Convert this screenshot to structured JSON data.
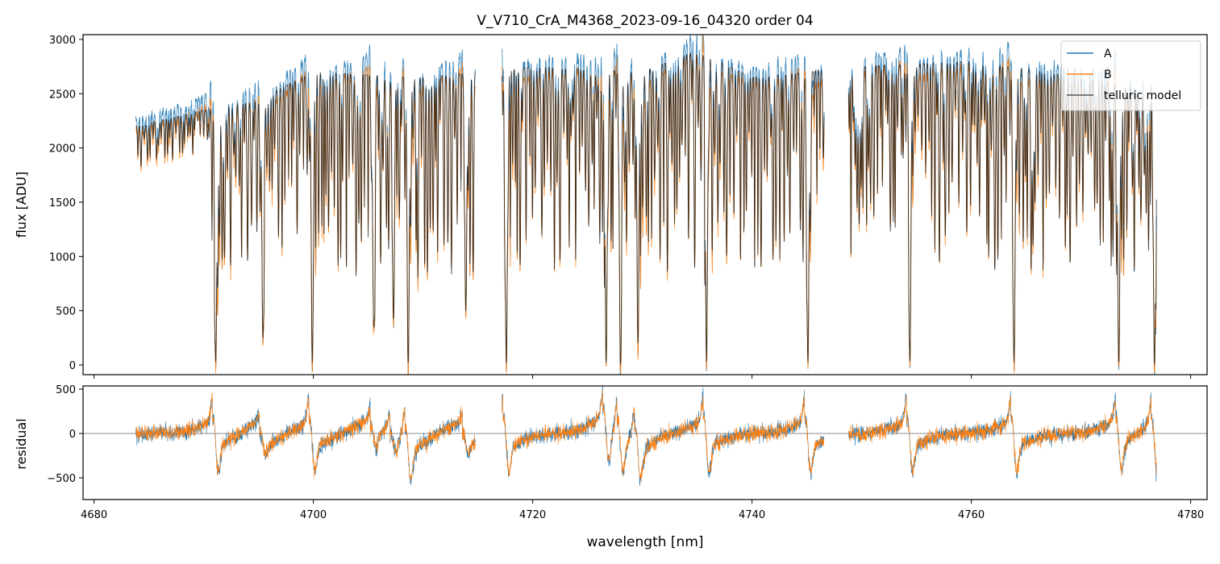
{
  "chart_data": [
    {
      "type": "line",
      "title": "V_V710_CrA_M4368_2023-09-16_04320  order 04",
      "xlabel": "",
      "ylabel": "flux [ADU]",
      "xlim": [
        4679.0,
        4781.5
      ],
      "ylim": [
        -89,
        3044
      ],
      "xticks": [
        4680,
        4700,
        4720,
        4740,
        4760,
        4780
      ],
      "yticks": [
        0,
        500,
        1000,
        1500,
        2000,
        2500,
        3000
      ],
      "ytick_labels": [
        "0",
        "500",
        "1000",
        "1500",
        "2000",
        "2500",
        "3000"
      ],
      "legend": {
        "position": "top-right",
        "entries": [
          "A",
          "B",
          "telluric model"
        ]
      },
      "series": [
        {
          "name": "A",
          "color": "#1f77b4",
          "scale": 1.03
        },
        {
          "name": "B",
          "color": "#ff7f0e",
          "scale": 0.98
        },
        {
          "name": "telluric model",
          "color": "#000000",
          "scale": 1.0
        }
      ],
      "data_segments_nm": [
        [
          4683.8,
          4714.8
        ],
        [
          4717.2,
          4746.6
        ],
        [
          4748.8,
          4776.9
        ]
      ],
      "continuum": {
        "x": [
          4683.8,
          4690,
          4695,
          4700,
          4710,
          4720,
          4730,
          4735,
          4740,
          4750,
          4760,
          4770,
          4776.9
        ],
        "y": [
          2200,
          2350,
          2450,
          2700,
          2650,
          2750,
          2700,
          2900,
          2650,
          2750,
          2800,
          2650,
          2500
        ]
      },
      "strong_lines": {
        "center_nm": [
          4691.1,
          4695.4,
          4699.9,
          4705.5,
          4707.3,
          4708.65,
          4713.9,
          4717.6,
          4726.7,
          4728.0,
          4729.6,
          4735.85,
          4745.1,
          4754.4,
          4763.9,
          4773.45,
          4776.7
        ],
        "min_flux": [
          30,
          250,
          20,
          380,
          480,
          20,
          500,
          20,
          30,
          10,
          240,
          20,
          30,
          40,
          30,
          40,
          0
        ]
      }
    },
    {
      "type": "line",
      "xlabel": "wavelength [nm]",
      "ylabel": "residual",
      "xlim": [
        4679.0,
        4781.5
      ],
      "ylim": [
        -745,
        536
      ],
      "xticks": [
        4680,
        4700,
        4720,
        4740,
        4760,
        4780
      ],
      "xtick_labels": [
        "4680",
        "4700",
        "4720",
        "4740",
        "4760",
        "4780"
      ],
      "yticks": [
        -500,
        0,
        500
      ],
      "ytick_labels": [
        "−500",
        "0",
        "500"
      ],
      "reference_line": 0,
      "series": [
        {
          "name": "A",
          "color": "#1f77b4"
        },
        {
          "name": "B",
          "color": "#ff7f0e"
        }
      ],
      "noise_rms": 45
    }
  ]
}
